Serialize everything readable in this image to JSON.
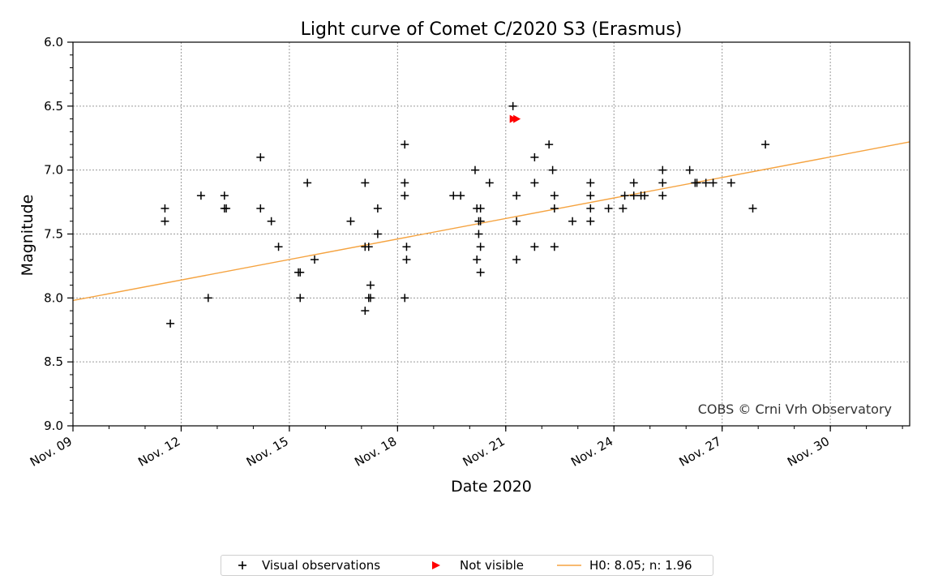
{
  "chart_data": {
    "type": "scatter",
    "title": "Light curve of Comet C/2020 S3 (Erasmus)",
    "xlabel": "Date 2020",
    "ylabel": "Magnitude",
    "xlim_days": [
      9,
      32.2
    ],
    "ylim": [
      9.0,
      6.0
    ],
    "y_inverted": true,
    "grid": true,
    "x_ticks": [
      {
        "day": 9,
        "label": "Nov. 09"
      },
      {
        "day": 12,
        "label": "Nov. 12"
      },
      {
        "day": 15,
        "label": "Nov. 15"
      },
      {
        "day": 18,
        "label": "Nov. 18"
      },
      {
        "day": 21,
        "label": "Nov. 21"
      },
      {
        "day": 24,
        "label": "Nov. 24"
      },
      {
        "day": 27,
        "label": "Nov. 27"
      },
      {
        "day": 30,
        "label": "Nov. 30"
      }
    ],
    "y_ticks": [
      {
        "value": 6.0,
        "label": "6.0"
      },
      {
        "value": 6.5,
        "label": "6.5"
      },
      {
        "value": 7.0,
        "label": "7.0"
      },
      {
        "value": 7.5,
        "label": "7.5"
      },
      {
        "value": 8.0,
        "label": "8.0"
      },
      {
        "value": 8.5,
        "label": "8.5"
      },
      {
        "value": 9.0,
        "label": "9.0"
      }
    ],
    "watermark": "COBS © Crni Vrh Observatory",
    "series": [
      {
        "name": "Visual observations",
        "marker": "plus",
        "color": "#000000",
        "points": [
          [
            11.55,
            7.3
          ],
          [
            11.55,
            7.4
          ],
          [
            11.7,
            8.2
          ],
          [
            12.55,
            7.2
          ],
          [
            12.75,
            8.0
          ],
          [
            13.2,
            7.2
          ],
          [
            13.2,
            7.3
          ],
          [
            13.25,
            7.3
          ],
          [
            14.2,
            6.9
          ],
          [
            14.2,
            7.3
          ],
          [
            14.5,
            7.4
          ],
          [
            14.7,
            7.6
          ],
          [
            15.25,
            7.8
          ],
          [
            15.3,
            7.8
          ],
          [
            15.3,
            8.0
          ],
          [
            15.5,
            7.1
          ],
          [
            15.7,
            7.7
          ],
          [
            16.7,
            7.4
          ],
          [
            17.1,
            7.1
          ],
          [
            17.1,
            7.6
          ],
          [
            17.1,
            8.1
          ],
          [
            17.2,
            7.6
          ],
          [
            17.2,
            8.0
          ],
          [
            17.25,
            7.9
          ],
          [
            17.25,
            8.0
          ],
          [
            17.45,
            7.3
          ],
          [
            17.45,
            7.5
          ],
          [
            18.2,
            6.8
          ],
          [
            18.2,
            7.1
          ],
          [
            18.2,
            7.2
          ],
          [
            18.2,
            8.0
          ],
          [
            18.25,
            7.6
          ],
          [
            18.25,
            7.7
          ],
          [
            19.55,
            7.2
          ],
          [
            19.75,
            7.2
          ],
          [
            20.15,
            7.0
          ],
          [
            20.2,
            7.3
          ],
          [
            20.2,
            7.7
          ],
          [
            20.25,
            7.4
          ],
          [
            20.25,
            7.5
          ],
          [
            20.3,
            7.3
          ],
          [
            20.3,
            7.4
          ],
          [
            20.3,
            7.6
          ],
          [
            20.3,
            7.8
          ],
          [
            20.55,
            7.1
          ],
          [
            21.2,
            6.5
          ],
          [
            21.3,
            7.2
          ],
          [
            21.3,
            7.4
          ],
          [
            21.3,
            7.7
          ],
          [
            21.8,
            6.9
          ],
          [
            21.8,
            7.1
          ],
          [
            21.8,
            7.6
          ],
          [
            22.2,
            6.8
          ],
          [
            22.3,
            7.0
          ],
          [
            22.35,
            7.2
          ],
          [
            22.35,
            7.3
          ],
          [
            22.35,
            7.6
          ],
          [
            22.85,
            7.4
          ],
          [
            23.35,
            7.1
          ],
          [
            23.35,
            7.2
          ],
          [
            23.35,
            7.3
          ],
          [
            23.35,
            7.4
          ],
          [
            23.85,
            7.3
          ],
          [
            24.25,
            7.3
          ],
          [
            24.3,
            7.2
          ],
          [
            24.55,
            7.1
          ],
          [
            24.55,
            7.2
          ],
          [
            24.75,
            7.2
          ],
          [
            24.85,
            7.2
          ],
          [
            25.35,
            7.0
          ],
          [
            25.35,
            7.1
          ],
          [
            25.35,
            7.2
          ],
          [
            26.1,
            7.0
          ],
          [
            26.25,
            7.1
          ],
          [
            26.3,
            7.1
          ],
          [
            26.55,
            7.1
          ],
          [
            26.75,
            7.1
          ],
          [
            27.25,
            7.1
          ],
          [
            27.85,
            7.3
          ],
          [
            28.2,
            6.8
          ]
        ]
      },
      {
        "name": "Not visible",
        "marker": "triangle-right",
        "color": "#ff0000",
        "points": [
          [
            21.2,
            6.6
          ],
          [
            21.3,
            6.6
          ]
        ]
      },
      {
        "name": "H0: 8.05; n: 1.96",
        "type": "line",
        "color": "#f5a340",
        "points": [
          [
            9.0,
            8.02
          ],
          [
            32.2,
            6.78
          ]
        ]
      }
    ]
  }
}
